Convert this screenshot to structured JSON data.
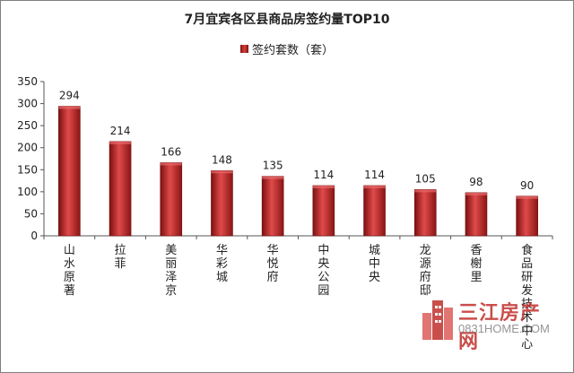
{
  "chart_data": {
    "type": "bar",
    "title": "7月宜宾各区县商品房签约量TOP10",
    "legend": [
      "签约套数（套）"
    ],
    "legend_position": "top",
    "categories": [
      "山水原著",
      "拉菲",
      "美丽泽京",
      "华彩城",
      "华悦府",
      "中央公园",
      "城中央",
      "龙源府邸",
      "香榭里",
      "食品研发技术中心"
    ],
    "series": [
      {
        "name": "签约套数（套）",
        "values": [
          294,
          214,
          166,
          148,
          135,
          114,
          114,
          105,
          98,
          90
        ]
      }
    ],
    "ylim": [
      0,
      350
    ],
    "yticks": [
      0,
      50,
      100,
      150,
      200,
      250,
      300,
      350
    ],
    "grid": false,
    "bar_color": "#c62f2f"
  },
  "watermark": {
    "text": "三江房产网",
    "url": "0831HOME.COM",
    "color": "#c0302c"
  }
}
